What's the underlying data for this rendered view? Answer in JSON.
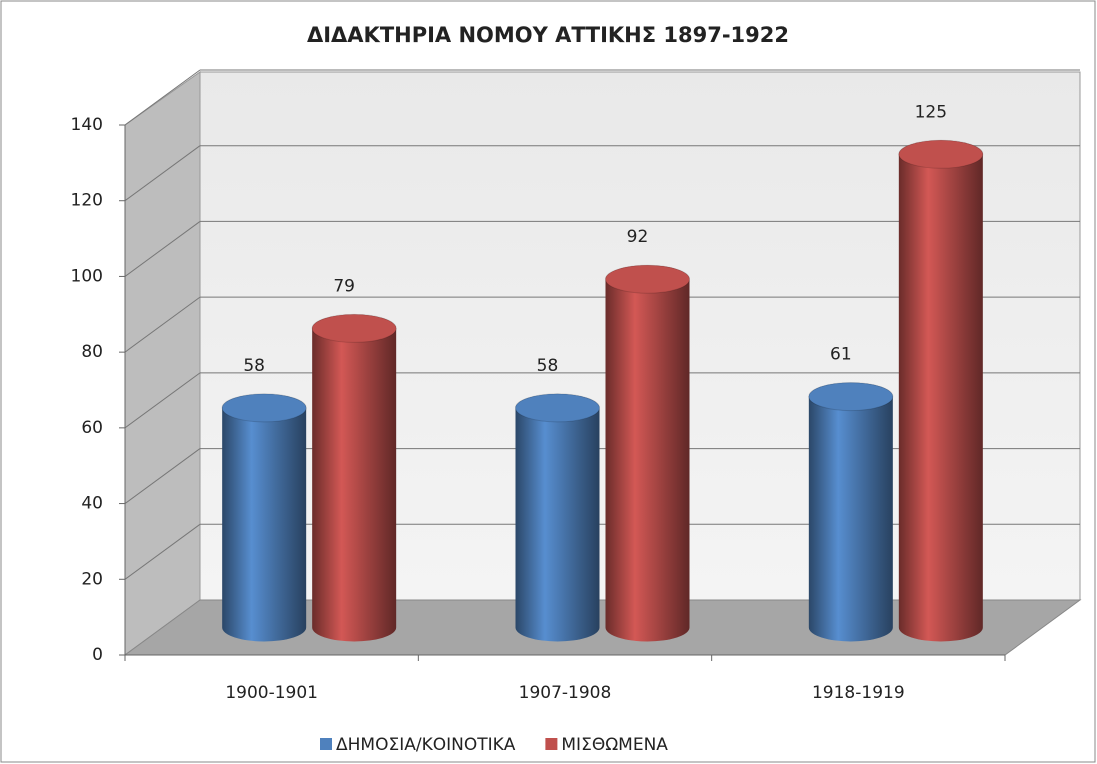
{
  "chart_data": {
    "type": "bar3d",
    "title": "ΔΙΔΑΚΤΗΡΙΑ ΝΟΜΟΥ ΑΤΤΙΚΗΣ 1897-1922",
    "categories": [
      "1900-1901",
      "1907-1908",
      "1918-1919"
    ],
    "series": [
      {
        "name": "ΔΗΜΟΣΙΑ/ΚΟΙΝΟΤΙΚΑ",
        "color": "#4f81bd",
        "values": [
          58,
          58,
          61
        ]
      },
      {
        "name": "ΜΙΣΘΩΜΕΝΑ",
        "color": "#c0504d",
        "values": [
          79,
          92,
          125
        ]
      }
    ],
    "ylim": [
      0,
      140
    ],
    "yticks": [
      0,
      20,
      40,
      60,
      80,
      100,
      120,
      140
    ],
    "grid": true,
    "legend": "bottom",
    "data_labels": true
  }
}
